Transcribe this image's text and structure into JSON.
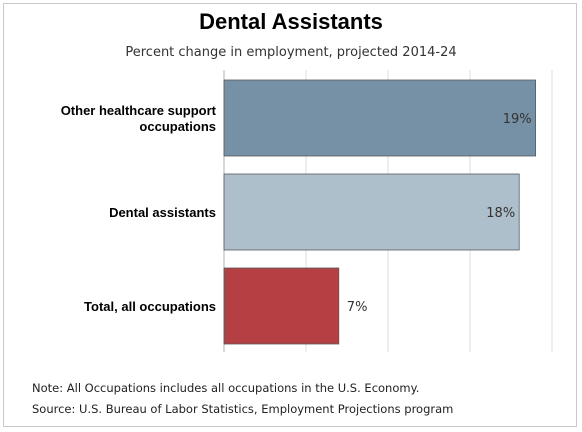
{
  "chart_data": {
    "type": "bar",
    "orientation": "horizontal",
    "title": "Dental Assistants",
    "subtitle": "Percent change in employment, projected 2014-24",
    "categories": [
      "Other healthcare support occupations",
      "Dental assistants",
      "Total, all occupations"
    ],
    "category_label_lines": [
      [
        "Other healthcare support",
        "occupations"
      ],
      [
        "Dental assistants"
      ],
      [
        "Total, all occupations"
      ]
    ],
    "values": [
      19,
      18,
      7
    ],
    "value_labels": [
      "19%",
      "18%",
      "7%"
    ],
    "colors": [
      "#7690a6",
      "#aebfcc",
      "#b54044"
    ],
    "xlim": [
      0,
      20
    ],
    "grid": true,
    "xlabel": "",
    "ylabel": ""
  },
  "notes": {
    "note": "Note: All Occupations includes all occupations in the U.S. Economy.",
    "source": "Source: U.S. Bureau of Labor Statistics, Employment Projections program"
  }
}
